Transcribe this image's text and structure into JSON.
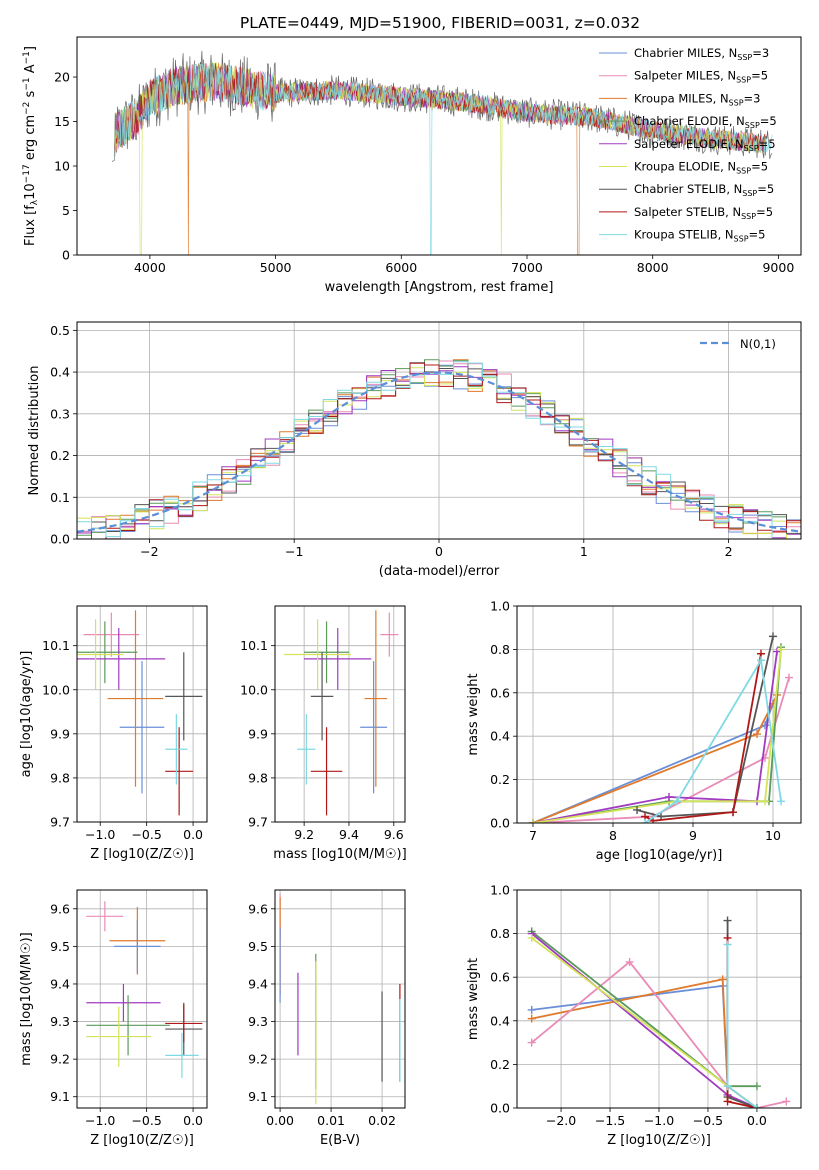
{
  "title": "PLATE=0449, MJD=51900, FIBERID=0031, z=0.032",
  "series": [
    {
      "key": "chab_miles",
      "label": "Chabrier MILES, N",
      "n": "3",
      "color": "#6a8fd8"
    },
    {
      "key": "salp_miles",
      "label": "Salpeter MILES, N",
      "n": "5",
      "color": "#e98bb6"
    },
    {
      "key": "krou_miles",
      "label": "Kroupa MILES, N",
      "n": "3",
      "color": "#e07a2c"
    },
    {
      "key": "chab_elodie",
      "label": "Chabrier ELODIE, N",
      "n": "5",
      "color": "#5b9a5b"
    },
    {
      "key": "salp_elodie",
      "label": "Salpeter ELODIE, N",
      "n": "5",
      "color": "#a03ac0"
    },
    {
      "key": "krou_elodie",
      "label": "Kroupa ELODIE, N",
      "n": "5",
      "color": "#d4e35a"
    },
    {
      "key": "chab_stelib",
      "label": "Chabrier STELIB, N",
      "n": "5",
      "color": "#555555"
    },
    {
      "key": "salp_stelib",
      "label": "Salpeter STELIB, N",
      "n": "5",
      "color": "#b01818"
    },
    {
      "key": "krou_stelib",
      "label": "Kroupa STELIB, N",
      "n": "5",
      "color": "#7fd9e3"
    }
  ],
  "legend_subscript": "SSP",
  "legend_eq": "=",
  "chart_data": [
    {
      "id": "spectrum",
      "type": "line",
      "xlabel": "wavelength [Angstrom, rest frame]",
      "ylabel": "Flux [f",
      "xlim": [
        3420,
        9180
      ],
      "ylim": [
        0,
        24.5
      ],
      "xticks": [
        4000,
        5000,
        6000,
        7000,
        8000,
        9000
      ],
      "yticks": [
        0,
        5,
        10,
        15,
        20
      ],
      "grid": false,
      "legend": "top-right",
      "continuum": [
        [
          3700,
          13.5
        ],
        [
          3900,
          15.5
        ],
        [
          4000,
          17.5
        ],
        [
          4200,
          19
        ],
        [
          4500,
          19.5
        ],
        [
          5000,
          18.2
        ],
        [
          5500,
          18.5
        ],
        [
          6000,
          17.8
        ],
        [
          6500,
          17.2
        ],
        [
          7000,
          16
        ],
        [
          7500,
          15.5
        ],
        [
          8000,
          14
        ],
        [
          8500,
          13
        ],
        [
          8900,
          12.5
        ]
      ]
    },
    {
      "id": "residuals",
      "type": "step",
      "xlabel": "(data-model)/error",
      "ylabel": "Normed distribution",
      "xlim": [
        -2.5,
        2.5
      ],
      "ylim": [
        0,
        0.52
      ],
      "xticks": [
        -2,
        -1,
        0,
        1,
        2
      ],
      "yticks": [
        0.0,
        0.1,
        0.2,
        0.3,
        0.4,
        0.5
      ],
      "grid": true,
      "legend": "top-right",
      "reference": {
        "label": "N(0,1)",
        "mu": 0,
        "sigma": 1
      }
    },
    {
      "id": "age_vs_z",
      "type": "errorbar",
      "xlabel": "Z [log10(Z/Z☉)]",
      "ylabel": "age [log10(age/yr)]",
      "xlim": [
        -1.25,
        0.15
      ],
      "ylim": [
        9.7,
        10.19
      ],
      "xticks": [
        -1.0,
        -0.5,
        0.0
      ],
      "yticks": [
        9.7,
        9.8,
        9.9,
        10.0,
        10.1
      ],
      "points": [
        {
          "x": -0.88,
          "y": 10.125,
          "xerr": 0.3,
          "yerr": 0.05,
          "s": 1
        },
        {
          "x": -0.55,
          "y": 9.915,
          "xerr": 0.24,
          "yerr": 0.15,
          "s": 0
        },
        {
          "x": -0.62,
          "y": 9.98,
          "xerr": 0.3,
          "yerr": 0.2,
          "s": 2
        },
        {
          "x": -0.95,
          "y": 10.085,
          "xerr": 0.35,
          "yerr": 0.07,
          "s": 3
        },
        {
          "x": -0.8,
          "y": 10.07,
          "xerr": 0.5,
          "yerr": 0.07,
          "s": 4
        },
        {
          "x": -1.05,
          "y": 10.08,
          "xerr": 0.3,
          "yerr": 0.08,
          "s": 5
        },
        {
          "x": -0.1,
          "y": 9.985,
          "xerr": 0.2,
          "yerr": 0.1,
          "s": 6
        },
        {
          "x": -0.15,
          "y": 9.815,
          "xerr": 0.15,
          "yerr": 0.1,
          "s": 7
        },
        {
          "x": -0.18,
          "y": 9.865,
          "xerr": 0.12,
          "yerr": 0.08,
          "s": 8
        }
      ]
    },
    {
      "id": "age_vs_mass",
      "type": "errorbar",
      "xlabel": "mass [log10(M/M☉)]",
      "ylabel": "",
      "xlim": [
        9.07,
        9.65
      ],
      "ylim": [
        9.7,
        10.19
      ],
      "xticks": [
        9.2,
        9.4,
        9.6
      ],
      "yticks": [
        9.7,
        9.8,
        9.9,
        10.0,
        10.1
      ],
      "points": [
        {
          "x": 9.58,
          "y": 10.125,
          "xerr": 0.04,
          "yerr": 0.05,
          "s": 1
        },
        {
          "x": 9.51,
          "y": 9.915,
          "xerr": 0.06,
          "yerr": 0.15,
          "s": 0
        },
        {
          "x": 9.52,
          "y": 9.98,
          "xerr": 0.05,
          "yerr": 0.2,
          "s": 2
        },
        {
          "x": 9.3,
          "y": 10.085,
          "xerr": 0.1,
          "yerr": 0.07,
          "s": 3
        },
        {
          "x": 9.35,
          "y": 10.07,
          "xerr": 0.15,
          "yerr": 0.07,
          "s": 4
        },
        {
          "x": 9.26,
          "y": 10.08,
          "xerr": 0.15,
          "yerr": 0.08,
          "s": 5
        },
        {
          "x": 9.28,
          "y": 9.985,
          "xerr": 0.05,
          "yerr": 0.1,
          "s": 6
        },
        {
          "x": 9.3,
          "y": 9.815,
          "xerr": 0.07,
          "yerr": 0.1,
          "s": 7
        },
        {
          "x": 9.21,
          "y": 9.865,
          "xerr": 0.04,
          "yerr": 0.08,
          "s": 8
        }
      ]
    },
    {
      "id": "weight_vs_age",
      "type": "line",
      "xlabel": "age [log10(age/yr)]",
      "ylabel": "mass weight",
      "xlim": [
        6.8,
        10.35
      ],
      "ylim": [
        0,
        1.0
      ],
      "xticks": [
        7,
        8,
        9,
        10
      ],
      "yticks": [
        0.0,
        0.2,
        0.4,
        0.6,
        0.8,
        1.0
      ],
      "grid": true,
      "lines": [
        {
          "s": 0,
          "pts": [
            [
              7.0,
              0.0
            ],
            [
              9.9,
              0.45
            ],
            [
              10.0,
              0.55
            ]
          ]
        },
        {
          "s": 2,
          "pts": [
            [
              7.0,
              0.0
            ],
            [
              9.8,
              0.41
            ],
            [
              10.05,
              0.59
            ]
          ]
        },
        {
          "s": 1,
          "pts": [
            [
              7.0,
              0.0
            ],
            [
              8.5,
              0.03
            ],
            [
              9.9,
              0.3
            ],
            [
              10.2,
              0.67
            ]
          ]
        },
        {
          "s": 3,
          "pts": [
            [
              7.0,
              0.0
            ],
            [
              8.7,
              0.1
            ],
            [
              9.95,
              0.1
            ],
            [
              10.1,
              0.81
            ]
          ]
        },
        {
          "s": 4,
          "pts": [
            [
              7.0,
              0.0
            ],
            [
              8.7,
              0.12
            ],
            [
              9.8,
              0.1
            ],
            [
              10.05,
              0.79
            ]
          ]
        },
        {
          "s": 5,
          "pts": [
            [
              7.0,
              0.0
            ],
            [
              8.8,
              0.1
            ],
            [
              9.9,
              0.1
            ],
            [
              10.1,
              0.8
            ]
          ]
        },
        {
          "s": 6,
          "pts": [
            [
              8.3,
              0.06
            ],
            [
              8.6,
              0.03
            ],
            [
              9.5,
              0.05
            ],
            [
              10.0,
              0.86
            ]
          ]
        },
        {
          "s": 7,
          "pts": [
            [
              8.4,
              0.03
            ],
            [
              8.5,
              0.01
            ],
            [
              9.5,
              0.05
            ],
            [
              9.85,
              0.78
            ]
          ]
        },
        {
          "s": 8,
          "pts": [
            [
              8.4,
              0.0
            ],
            [
              8.8,
              0.1
            ],
            [
              9.85,
              0.75
            ],
            [
              10.1,
              0.1
            ]
          ]
        }
      ]
    },
    {
      "id": "mass_vs_z",
      "type": "errorbar",
      "xlabel": "Z [log10(Z/Z☉)]",
      "ylabel": "mass [log10(M/M☉)]",
      "xlim": [
        -1.25,
        0.15
      ],
      "ylim": [
        9.07,
        9.65
      ],
      "xticks": [
        -1.0,
        -0.5,
        0.0
      ],
      "yticks": [
        9.1,
        9.2,
        9.3,
        9.4,
        9.5,
        9.6
      ],
      "points": [
        {
          "x": -0.95,
          "y": 9.58,
          "xerr": 0.2,
          "yerr": 0.04,
          "s": 1
        },
        {
          "x": -0.6,
          "y": 9.515,
          "xerr": 0.3,
          "yerr": 0.09,
          "s": 2
        },
        {
          "x": -0.6,
          "y": 9.5,
          "xerr": 0.25,
          "yerr": 0.07,
          "s": 0
        },
        {
          "x": -0.75,
          "y": 9.35,
          "xerr": 0.4,
          "yerr": 0.05,
          "s": 4
        },
        {
          "x": -0.7,
          "y": 9.29,
          "xerr": 0.45,
          "yerr": 0.08,
          "s": 3
        },
        {
          "x": -0.8,
          "y": 9.26,
          "xerr": 0.35,
          "yerr": 0.08,
          "s": 5
        },
        {
          "x": -0.1,
          "y": 9.28,
          "xerr": 0.2,
          "yerr": 0.07,
          "s": 6
        },
        {
          "x": -0.1,
          "y": 9.295,
          "xerr": 0.2,
          "yerr": 0.05,
          "s": 7
        },
        {
          "x": -0.12,
          "y": 9.21,
          "xerr": 0.18,
          "yerr": 0.06,
          "s": 8
        }
      ]
    },
    {
      "id": "mass_vs_ebv",
      "type": "errorbar",
      "xlabel": "E(B-V)",
      "ylabel": "",
      "xlim": [
        -0.001,
        0.0245
      ],
      "ylim": [
        9.07,
        9.65
      ],
      "xticks": [
        0.0,
        0.01,
        0.02
      ],
      "yticks": [
        9.1,
        9.2,
        9.3,
        9.4,
        9.5,
        9.6
      ],
      "points": [
        {
          "x": 0.0,
          "y": 9.58,
          "xerr": 0,
          "yerr": 0.06,
          "s": 1
        },
        {
          "x": 0.0,
          "y": 9.5,
          "xerr": 0,
          "yerr": 0.13,
          "s": 2
        },
        {
          "x": 0.0,
          "y": 9.45,
          "xerr": 0,
          "yerr": 0.1,
          "s": 0
        },
        {
          "x": 0.0035,
          "y": 9.32,
          "xerr": 0,
          "yerr": 0.11,
          "s": 4
        },
        {
          "x": 0.007,
          "y": 9.3,
          "xerr": 0,
          "yerr": 0.18,
          "s": 3
        },
        {
          "x": 0.007,
          "y": 9.27,
          "xerr": 0,
          "yerr": 0.19,
          "s": 5
        },
        {
          "x": 0.02,
          "y": 9.26,
          "xerr": 0,
          "yerr": 0.12,
          "s": 6
        },
        {
          "x": 0.0235,
          "y": 9.27,
          "xerr": 0,
          "yerr": 0.13,
          "s": 7
        },
        {
          "x": 0.0235,
          "y": 9.25,
          "xerr": 0,
          "yerr": 0.11,
          "s": 8
        }
      ]
    },
    {
      "id": "weight_vs_z",
      "type": "line",
      "xlabel": "Z [log10(Z/Z☉)]",
      "ylabel": "mass weight",
      "xlim": [
        -2.45,
        0.45
      ],
      "ylim": [
        0,
        1.0
      ],
      "xticks": [
        -2.0,
        -1.5,
        -1.0,
        -0.5,
        0.0
      ],
      "yticks": [
        0.0,
        0.2,
        0.4,
        0.6,
        0.8,
        1.0
      ],
      "grid": true,
      "lines": [
        {
          "s": 0,
          "pts": [
            [
              -2.3,
              0.45
            ],
            [
              -0.35,
              0.56
            ],
            [
              -0.3,
              0.1
            ],
            [
              0.0,
              0.0
            ]
          ]
        },
        {
          "s": 2,
          "pts": [
            [
              -2.3,
              0.41
            ],
            [
              -0.35,
              0.59
            ],
            [
              -0.3,
              0.1
            ],
            [
              0.0,
              0.0
            ]
          ]
        },
        {
          "s": 1,
          "pts": [
            [
              -2.3,
              0.3
            ],
            [
              -1.3,
              0.67
            ],
            [
              -0.3,
              0.1
            ],
            [
              0.0,
              0.0
            ],
            [
              0.3,
              0.03
            ]
          ]
        },
        {
          "s": 3,
          "pts": [
            [
              -2.3,
              0.81
            ],
            [
              -0.3,
              0.1
            ],
            [
              0.0,
              0.1
            ]
          ]
        },
        {
          "s": 4,
          "pts": [
            [
              -2.3,
              0.8
            ],
            [
              -0.3,
              0.06
            ],
            [
              0.0,
              0.0
            ]
          ]
        },
        {
          "s": 5,
          "pts": [
            [
              -2.3,
              0.78
            ],
            [
              -0.3,
              0.1
            ],
            [
              0.0,
              0.0
            ]
          ]
        },
        {
          "s": 6,
          "pts": [
            [
              -0.3,
              0.86
            ],
            [
              -0.3,
              0.05
            ],
            [
              0.0,
              0.0
            ]
          ]
        },
        {
          "s": 7,
          "pts": [
            [
              -0.3,
              0.78
            ],
            [
              -0.3,
              0.03
            ],
            [
              0.0,
              0.0
            ]
          ]
        },
        {
          "s": 8,
          "pts": [
            [
              -0.3,
              0.75
            ],
            [
              -0.3,
              0.1
            ],
            [
              0.0,
              0.0
            ]
          ]
        }
      ]
    }
  ]
}
